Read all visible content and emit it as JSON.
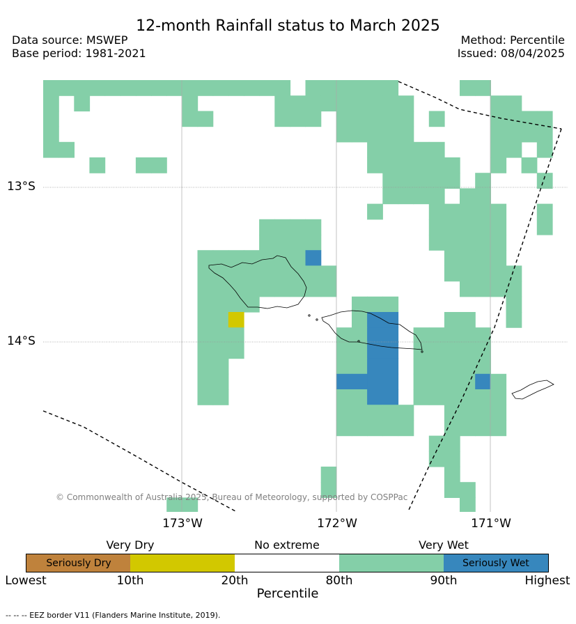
{
  "header": {
    "title": "12-month Rainfall status to March 2025",
    "data_source": "Data source: MSWEP",
    "base_period": "Base period: 1981-2021",
    "method": "Method: Percentile",
    "issued": "Issued: 08/04/2025"
  },
  "map": {
    "lon_range": [
      -173.9,
      -170.5
    ],
    "lat_range": [
      -15.1,
      -12.35
    ],
    "lat_labels": [
      {
        "value": -13,
        "text": "13°S"
      },
      {
        "value": -14,
        "text": "14°S"
      }
    ],
    "lon_labels": [
      {
        "value": -173,
        "text": "173°W"
      },
      {
        "value": -172,
        "text": "172°W"
      },
      {
        "value": -171,
        "text": "171°W"
      }
    ],
    "copyright": "© Commonwealth of Australia 2025, Bureau of Meteorology, supported by COSPPac",
    "colors": {
      "very_wet": "#84cfa8",
      "seriously_wet": "#3787bd",
      "very_dry": "#d2c800",
      "seriously_dry": "#bf823c"
    }
  },
  "legend": {
    "category_labels": [
      "Very Dry",
      "No extreme",
      "Very Wet"
    ],
    "box_seriously_dry": "Seriously Dry",
    "box_seriously_wet": "Seriously Wet",
    "ticks": [
      "Lowest",
      "10th",
      "20th",
      "80th",
      "90th",
      "Highest"
    ],
    "xlabel": "Percentile"
  },
  "footnote": "-- -- -- EEZ border V11 (Flanders Marine Institute, 2019)."
}
